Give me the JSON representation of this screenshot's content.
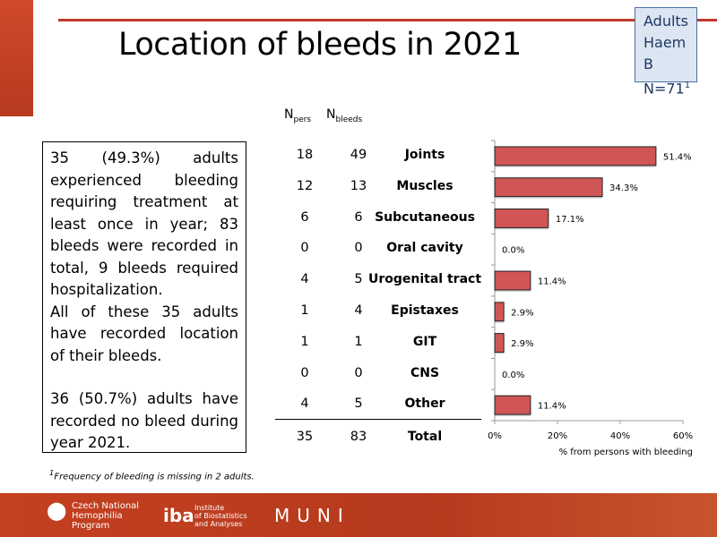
{
  "title": "Location of bleeds in 2021",
  "badge": {
    "line1": "Adults",
    "line2": "Haem B",
    "line3": "N=71",
    "sup": "1"
  },
  "textbox": {
    "p1": "35 (49.3%) adults experienced bleeding requiring treatment at least once in year; 83 bleeds were recorded in total, 9 bleeds required hospitalization.",
    "p2": "All of these 35 adults have recorded location of their bleeds.",
    "p3": "36 (50.7%) adults have recorded no bleed during year 2021."
  },
  "footnote": {
    "sup": "1",
    "text": "Frequency of bleeding is missing in 2 adults."
  },
  "table": {
    "h1": "N",
    "h1sub": "pers",
    "h2": "N",
    "h2sub": "bleeds",
    "rows": [
      {
        "npers": "18",
        "nbleeds": "49",
        "label": "Joints"
      },
      {
        "npers": "12",
        "nbleeds": "13",
        "label": "Muscles"
      },
      {
        "npers": "6",
        "nbleeds": "6",
        "label": "Subcutaneous"
      },
      {
        "npers": "0",
        "nbleeds": "0",
        "label": "Oral cavity"
      },
      {
        "npers": "4",
        "nbleeds": "5",
        "label": "Urogenital tract"
      },
      {
        "npers": "1",
        "nbleeds": "4",
        "label": "Epistaxes"
      },
      {
        "npers": "1",
        "nbleeds": "1",
        "label": "GIT"
      },
      {
        "npers": "0",
        "nbleeds": "0",
        "label": "CNS"
      },
      {
        "npers": "4",
        "nbleeds": "5",
        "label": "Other"
      }
    ],
    "total": {
      "npers": "35",
      "nbleeds": "83",
      "label": "Total"
    }
  },
  "chart_data": {
    "type": "bar",
    "orientation": "horizontal",
    "categories": [
      "Joints",
      "Muscles",
      "Subcutaneous",
      "Oral cavity",
      "Urogenital tract",
      "Epistaxes",
      "GIT",
      "CNS",
      "Other"
    ],
    "values": [
      51.4,
      34.3,
      17.1,
      0.0,
      11.4,
      2.9,
      2.9,
      0.0,
      11.4
    ],
    "data_labels": [
      "51.4%",
      "34.3%",
      "17.1%",
      "0.0%",
      "11.4%",
      "2.9%",
      "2.9%",
      "0.0%",
      "11.4%"
    ],
    "xlim": [
      0,
      60
    ],
    "xticks": [
      "0%",
      "20%",
      "40%",
      "60%"
    ],
    "xlabel": "% from persons with bleeding",
    "bar_color": "#d05555"
  },
  "footer": {
    "logo1": [
      "Czech National",
      "Hemophilia",
      "Program"
    ],
    "logo2": "iba",
    "logo2_text": [
      "Institute",
      "of Biostatistics",
      "and Analyses"
    ],
    "logo3": "MUNI"
  }
}
